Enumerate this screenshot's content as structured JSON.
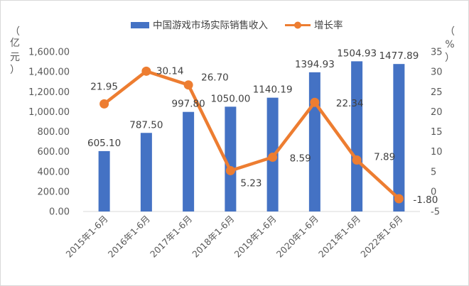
{
  "chart_data": {
    "type": "bar",
    "categories": [
      "2015年1-6月",
      "2016年1-6月",
      "2017年1-6月",
      "2018年1-6月",
      "2019年1-6月",
      "2020年1-6月",
      "2021年1-6月",
      "2022年1-6月"
    ],
    "series": [
      {
        "name": "中国游戏市场实际销售收入",
        "type": "bar",
        "axis": "left",
        "color": "#4472C4",
        "values": [
          605.1,
          787.5,
          997.8,
          1050.0,
          1140.19,
          1394.93,
          1504.93,
          1477.89
        ],
        "labels": [
          "605.10",
          "787.50",
          "997.80",
          "1050.00",
          "1140.19",
          "1394.93",
          "1504.93",
          "1477.89"
        ]
      },
      {
        "name": "增长率",
        "type": "line",
        "axis": "right",
        "color": "#ED7D31",
        "values": [
          21.95,
          30.14,
          26.7,
          5.23,
          8.59,
          22.34,
          7.89,
          -1.8
        ],
        "labels": [
          "21.95",
          "30.14",
          "26.70",
          "5.23",
          "8.59",
          "22.34",
          "7.89",
          "-1.80"
        ]
      }
    ],
    "left_axis": {
      "unit_label": [
        "（",
        "亿",
        "元",
        "）"
      ],
      "ylim": [
        0,
        1600
      ],
      "ticks": [
        "0.00",
        "200.00",
        "400.00",
        "600.00",
        "800.00",
        "1,000.00",
        "1,200.00",
        "1,400.00",
        "1,600.00"
      ]
    },
    "right_axis": {
      "unit_label": [
        "（",
        "%",
        "）"
      ],
      "ylim": [
        -5,
        35
      ],
      "ticks": [
        "-5",
        "0",
        "5",
        "10",
        "15",
        "20",
        "25",
        "30",
        "35"
      ]
    },
    "grid": false,
    "legend_position": "top"
  }
}
